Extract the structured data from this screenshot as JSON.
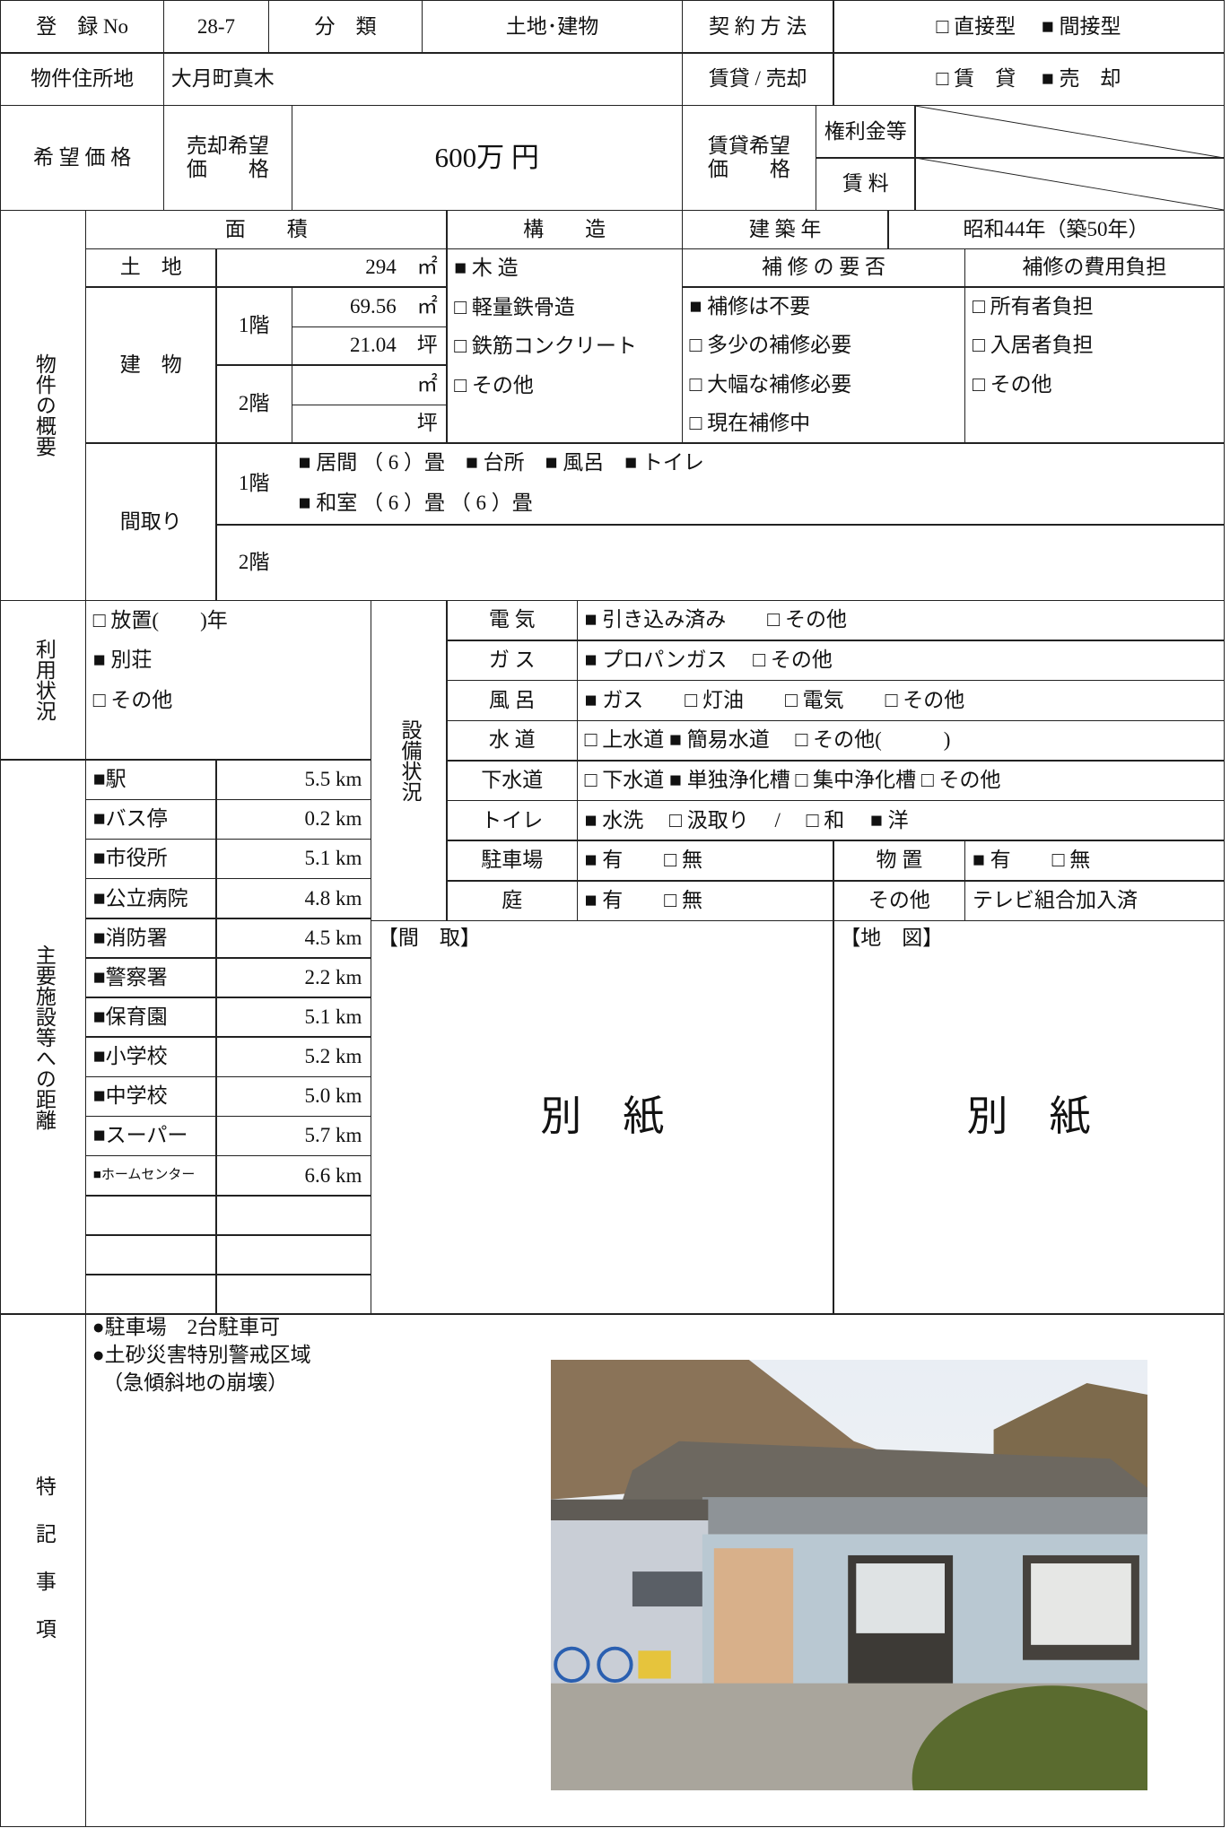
{
  "header": {
    "reg_no_label": "登　録 No",
    "reg_no": "28-7",
    "category_label": "分　類",
    "category": "土地･建物",
    "contract_label": "契 約 方 法",
    "contract": "□ 直接型　 ■ 間接型",
    "address_label": "物件住所地",
    "address": "大月町真木",
    "rent_sale_label": "賃貸 / 売却",
    "rent_sale": "□ 賃　貸　 ■ 売　却",
    "price_label": "希 望 価 格",
    "sale_price_label": "売却希望\n価　　格",
    "sale_price": "600万 円",
    "rent_price_label": "賃貸希望\n価　　格",
    "key_money_label": "権利金等",
    "rent_label": "賃 料"
  },
  "overview": {
    "title": "物件の概要",
    "area_label": "面　　積",
    "structure_label": "構　　造",
    "built_label": "建 築 年",
    "built": "昭和44年（築50年）",
    "land_label": "土　地",
    "land_area": "294　㎡",
    "building_label": "建　物",
    "floor1_label": "1階",
    "floor1_m2": "69.56　㎡",
    "floor1_tsubo": "21.04　坪",
    "floor2_label": "2階",
    "floor2_m2": "㎡",
    "floor2_tsubo": "坪",
    "structures": [
      "■ 木 造",
      "□ 軽量鉄骨造",
      "□ 鉄筋コンクリート",
      "□ その他"
    ],
    "repair_label": "補 修 の 要 否",
    "repairs": [
      "■ 補修は不要",
      "□ 多少の補修必要",
      "□ 大幅な補修必要",
      "□ 現在補修中"
    ],
    "repair_cost_label": "補修の費用負担",
    "repair_costs": [
      "□ 所有者負担",
      "□ 入居者負担",
      "□ その他"
    ],
    "layout_label": "間取り",
    "layout_floor1_label": "1階",
    "layout_floor1": [
      "■ 居間 （ 6 ）畳　■ 台所　■ 風呂　■ トイレ",
      "■ 和室 （ 6 ）畳 （ 6 ）畳"
    ],
    "layout_floor2_label": "2階"
  },
  "usage": {
    "title": "利用状況",
    "items": [
      "□ 放置(　　)年",
      "■ 別荘",
      "□ その他"
    ]
  },
  "equipment": {
    "title": "設備状況",
    "rows": [
      {
        "label": "電 気",
        "value": "■ 引き込み済み　　□ その他"
      },
      {
        "label": "ガ ス",
        "value": "■ プロパンガス　 □ その他"
      },
      {
        "label": "風 呂",
        "value": "■ ガス　　□ 灯油　　□ 電気　　□ その他"
      },
      {
        "label": "水 道",
        "value": "□ 上水道 ■ 簡易水道　 □ その他(　　　)"
      },
      {
        "label": "下水道",
        "value": "□ 下水道 ■ 単独浄化槽 □ 集中浄化槽 □ その他"
      },
      {
        "label": "トイレ",
        "value": "■ 水洗　 □ 汲取り　 /　 □ 和　 ■ 洋"
      },
      {
        "label": "駐車場",
        "value": "■ 有　　□ 無",
        "sublabel": "物 置",
        "subvalue": "■ 有　　□ 無"
      },
      {
        "label": "庭",
        "value": "■ 有　　□ 無",
        "sublabel": "その他",
        "subvalue": "テレビ組合加入済"
      }
    ]
  },
  "distances": {
    "title": "主要施設等への距離",
    "rows": [
      {
        "name": "■駅",
        "distance": "5.5 km"
      },
      {
        "name": "■バス停",
        "distance": "0.2 km"
      },
      {
        "name": "■市役所",
        "distance": "5.1 km"
      },
      {
        "name": "■公立病院",
        "distance": "4.8 km"
      },
      {
        "name": "■消防署",
        "distance": "4.5 km"
      },
      {
        "name": "■警察署",
        "distance": "2.2 km"
      },
      {
        "name": "■保育園",
        "distance": "5.1 km"
      },
      {
        "name": "■小学校",
        "distance": "5.2 km"
      },
      {
        "name": "■中学校",
        "distance": "5.0 km"
      },
      {
        "name": "■スーパー",
        "distance": "5.7 km"
      },
      {
        "name": "■ホームセンター",
        "distance": "6.6 km"
      }
    ]
  },
  "floor_plan": {
    "label": "【間　取】",
    "note": "別　紙"
  },
  "map": {
    "label": "【地　図】",
    "note": "別　紙"
  },
  "remarks": {
    "title": "特記事項",
    "notes": [
      "●駐車場　2台駐車可",
      "●土砂災害特別警戒区域",
      "　（急傾斜地の崩壊）"
    ]
  }
}
